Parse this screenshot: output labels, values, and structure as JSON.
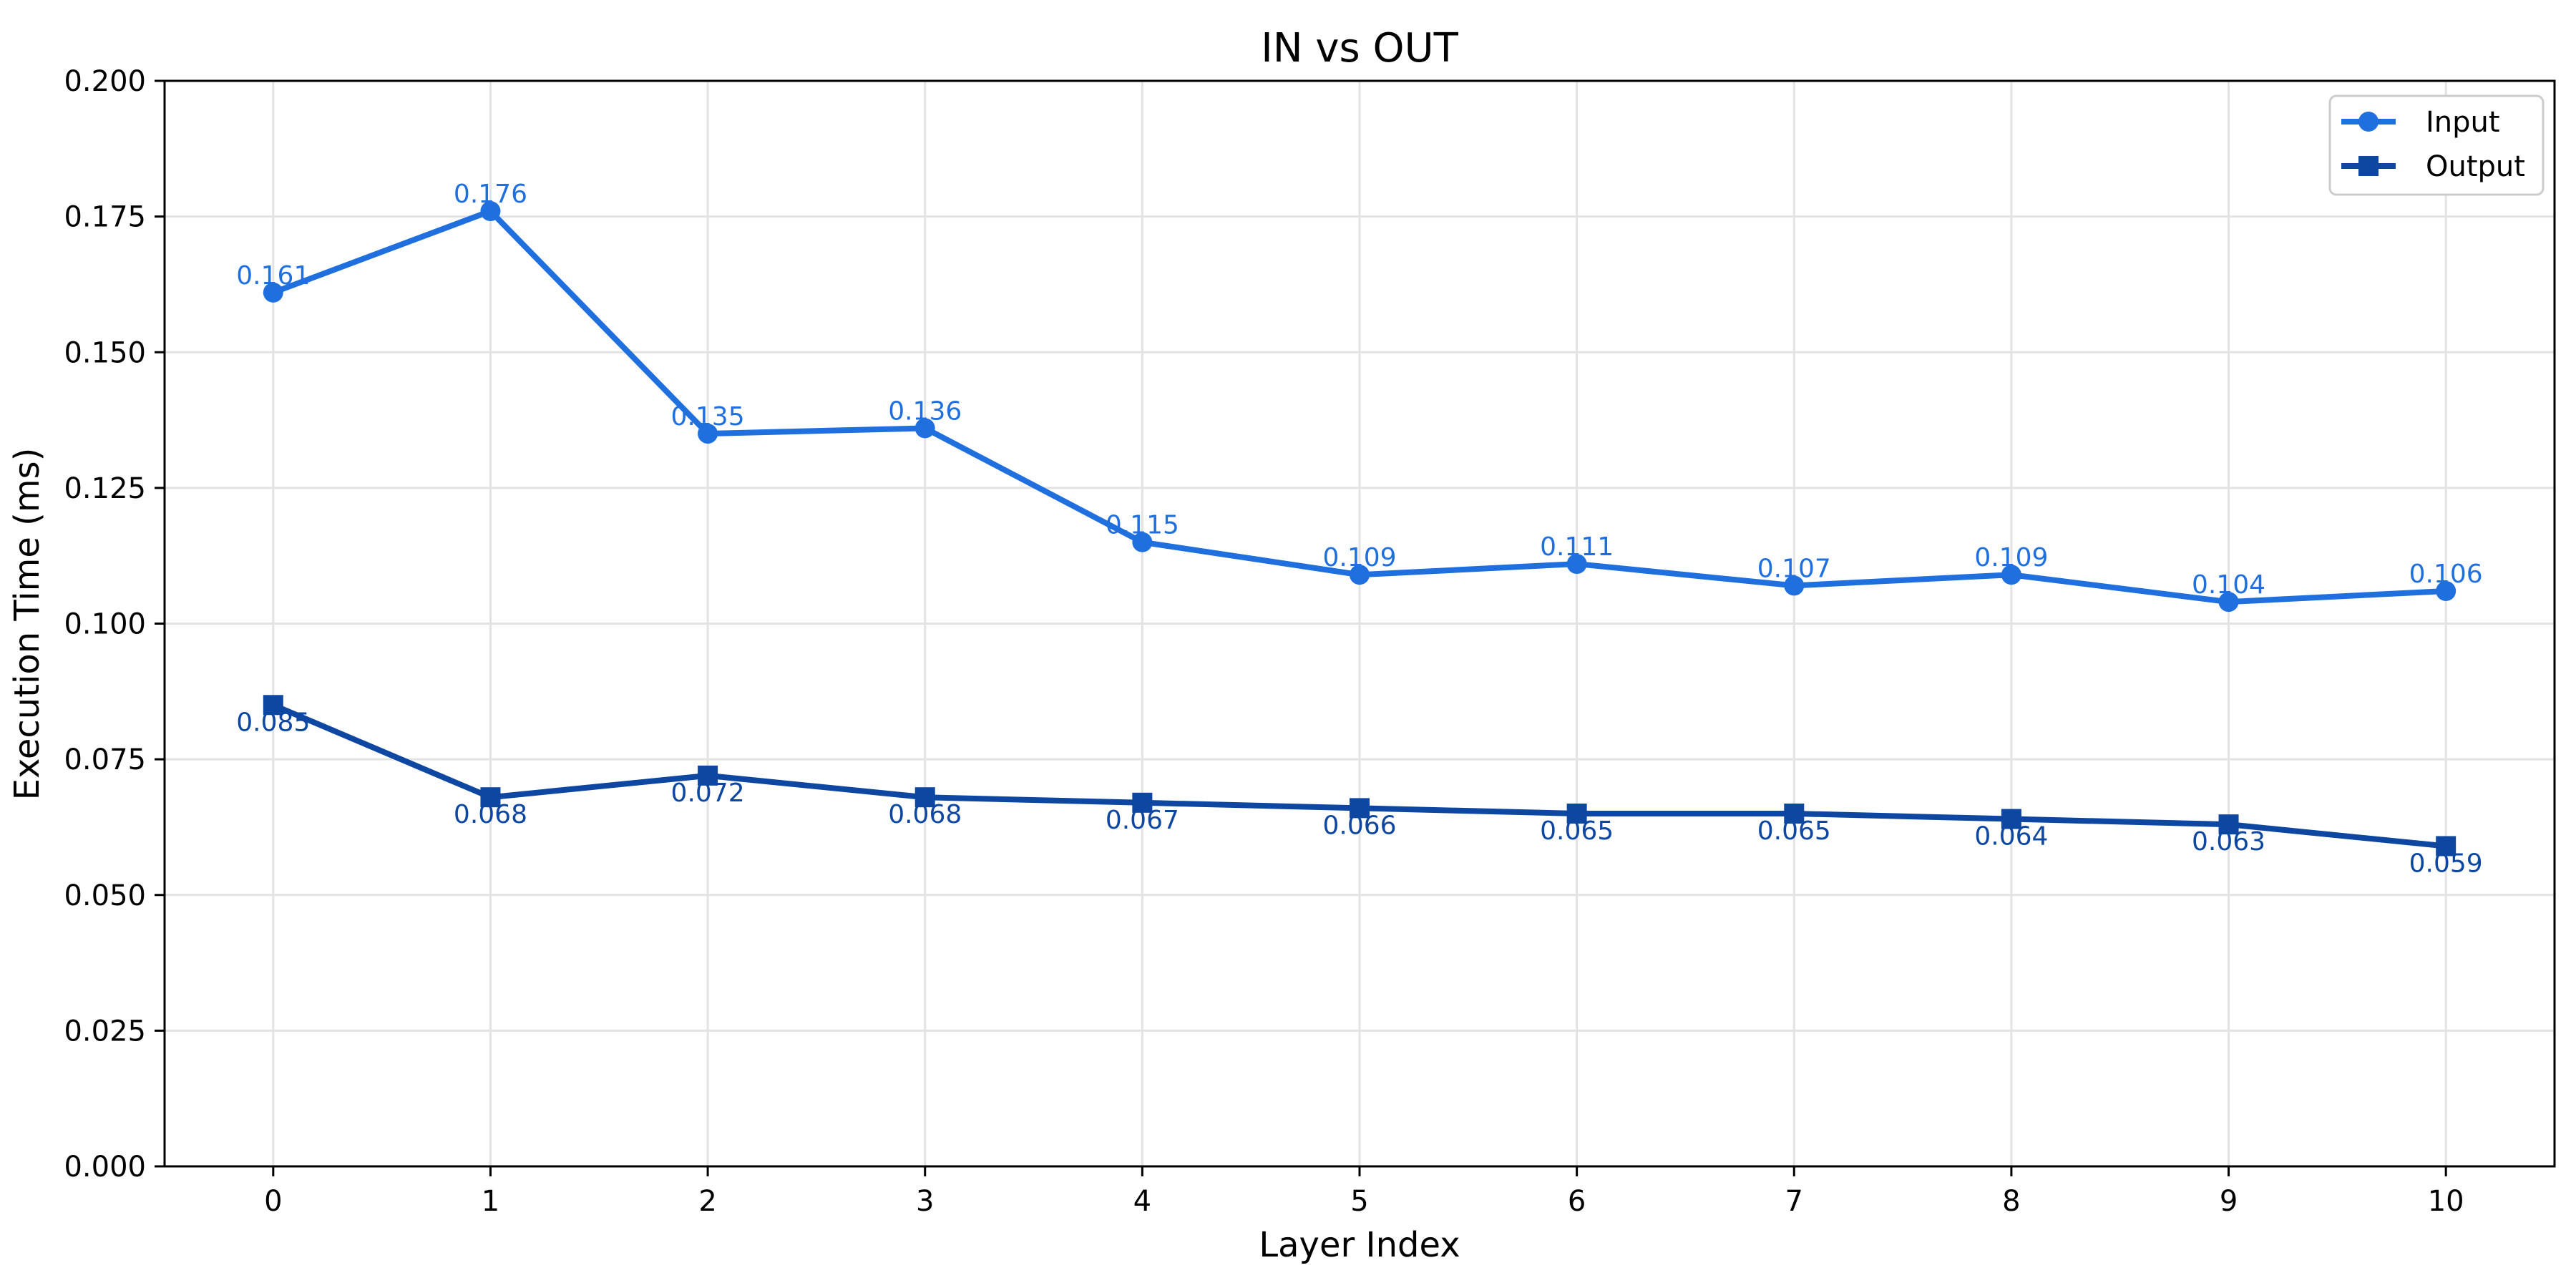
{
  "chart_data": {
    "type": "line",
    "title": "IN vs OUT",
    "xlabel": "Layer Index",
    "ylabel": "Execution Time (ms)",
    "x": [
      0,
      1,
      2,
      3,
      4,
      5,
      6,
      7,
      8,
      9,
      10
    ],
    "xlim": [
      -0.5,
      10.5
    ],
    "ylim": [
      0.0,
      0.2
    ],
    "yticks": [
      "0.000",
      "0.025",
      "0.050",
      "0.075",
      "0.100",
      "0.125",
      "0.150",
      "0.175",
      "0.200"
    ],
    "xticks": [
      "0",
      "1",
      "2",
      "3",
      "4",
      "5",
      "6",
      "7",
      "8",
      "9",
      "10"
    ],
    "grid": true,
    "legend_position": "top-right",
    "series": [
      {
        "name": "Input",
        "marker": "circle",
        "color": "#1f6fde",
        "values": [
          0.161,
          0.176,
          0.135,
          0.136,
          0.115,
          0.109,
          0.111,
          0.107,
          0.109,
          0.104,
          0.106
        ],
        "labels": [
          "0.161",
          "0.176",
          "0.135",
          "0.136",
          "0.115",
          "0.109",
          "0.111",
          "0.107",
          "0.109",
          "0.104",
          "0.106"
        ]
      },
      {
        "name": "Output",
        "marker": "square",
        "color": "#0d47a1",
        "values": [
          0.085,
          0.068,
          0.072,
          0.068,
          0.067,
          0.066,
          0.065,
          0.065,
          0.064,
          0.063,
          0.059
        ],
        "labels": [
          "0.085",
          "0.068",
          "0.072",
          "0.068",
          "0.067",
          "0.066",
          "0.065",
          "0.065",
          "0.064",
          "0.063",
          "0.059"
        ]
      }
    ]
  }
}
